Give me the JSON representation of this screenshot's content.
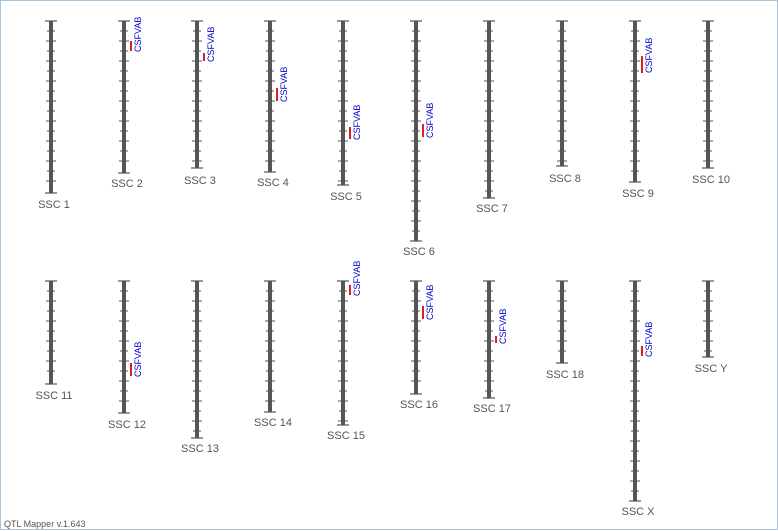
{
  "app": {
    "footer": "QTL Mapper v.1.643"
  },
  "colors": {
    "chromosome": "#555555",
    "tick": "#555555",
    "label": "#555555",
    "qtl_bar": "#e02020",
    "qtl_label": "#0000cc"
  },
  "chromosomes": [
    {
      "label": "SSC 1",
      "qtls": []
    },
    {
      "label": "SSC 2",
      "qtls": [
        {
          "name": "CSFVAB"
        }
      ]
    },
    {
      "label": "SSC 3",
      "qtls": [
        {
          "name": "CSFVAB"
        }
      ]
    },
    {
      "label": "SSC 4",
      "qtls": [
        {
          "name": "CSFVAB"
        }
      ]
    },
    {
      "label": "SSC 5",
      "qtls": [
        {
          "name": "CSFVAB"
        }
      ]
    },
    {
      "label": "SSC 6",
      "qtls": [
        {
          "name": "CSFVAB"
        }
      ]
    },
    {
      "label": "SSC 7",
      "qtls": []
    },
    {
      "label": "SSC 8",
      "qtls": []
    },
    {
      "label": "SSC 9",
      "qtls": [
        {
          "name": "CSFVAB"
        }
      ]
    },
    {
      "label": "SSC 10",
      "qtls": []
    },
    {
      "label": "SSC 11",
      "qtls": []
    },
    {
      "label": "SSC 12",
      "qtls": [
        {
          "name": "CSFVAB"
        }
      ]
    },
    {
      "label": "SSC 13",
      "qtls": []
    },
    {
      "label": "SSC 14",
      "qtls": []
    },
    {
      "label": "SSC 15",
      "qtls": [
        {
          "name": "CSFVAB"
        }
      ]
    },
    {
      "label": "SSC 16",
      "qtls": [
        {
          "name": "CSFVAB"
        }
      ]
    },
    {
      "label": "SSC 17",
      "qtls": [
        {
          "name": "CSFVAB"
        }
      ]
    },
    {
      "label": "SSC 18",
      "qtls": []
    },
    {
      "label": "SSC X",
      "qtls": [
        {
          "name": "CSFVAB"
        }
      ]
    },
    {
      "label": "SSC Y",
      "qtls": []
    }
  ]
}
